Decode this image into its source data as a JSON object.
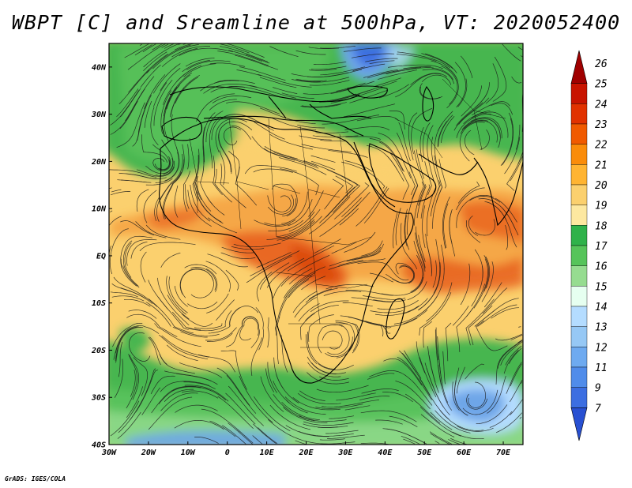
{
  "title": "WBPT [C] and Sreamline at 500hPa, VT: 2020052400",
  "footer": "GrADS: IGES/COLA",
  "map": {
    "lon_range": [
      -30,
      75
    ],
    "lat_range": [
      -40,
      45
    ],
    "x_ticks": [
      {
        "value": -30,
        "label": "30W"
      },
      {
        "value": -20,
        "label": "20W"
      },
      {
        "value": -10,
        "label": "10W"
      },
      {
        "value": 0,
        "label": "0"
      },
      {
        "value": 10,
        "label": "10E"
      },
      {
        "value": 20,
        "label": "20E"
      },
      {
        "value": 30,
        "label": "30E"
      },
      {
        "value": 40,
        "label": "40E"
      },
      {
        "value": 50,
        "label": "50E"
      },
      {
        "value": 60,
        "label": "60E"
      },
      {
        "value": 70,
        "label": "70E"
      }
    ],
    "y_ticks": [
      {
        "value": 40,
        "label": "40N"
      },
      {
        "value": 30,
        "label": "30N"
      },
      {
        "value": 20,
        "label": "20N"
      },
      {
        "value": 10,
        "label": "10N"
      },
      {
        "value": 0,
        "label": "EQ"
      },
      {
        "value": -10,
        "label": "10S"
      },
      {
        "value": -20,
        "label": "20S"
      },
      {
        "value": -30,
        "label": "30S"
      },
      {
        "value": -40,
        "label": "40S"
      }
    ]
  },
  "colorbar": {
    "labels": [
      "26",
      "25",
      "24",
      "23",
      "22",
      "21",
      "20",
      "19",
      "18",
      "17",
      "16",
      "15",
      "14",
      "13",
      "12",
      "11",
      "9",
      "7"
    ],
    "colors": [
      "#a00000",
      "#c81400",
      "#e13200",
      "#f05a00",
      "#fa8c0a",
      "#ffb432",
      "#fbd06e",
      "#fde8a0",
      "#2fb24a",
      "#56c45a",
      "#96dc90",
      "#e6fff0",
      "#b4dcff",
      "#96c8f5",
      "#6eaaf0",
      "#508cea",
      "#3c6ee1",
      "#2850d2"
    ]
  },
  "colors": {
    "tropics_warm": "#fbd06e",
    "hot_core": "#f08a2c",
    "hot_max": "#e05a1a",
    "midlat": "#3fb24f",
    "cold": "#6ea6e8"
  }
}
